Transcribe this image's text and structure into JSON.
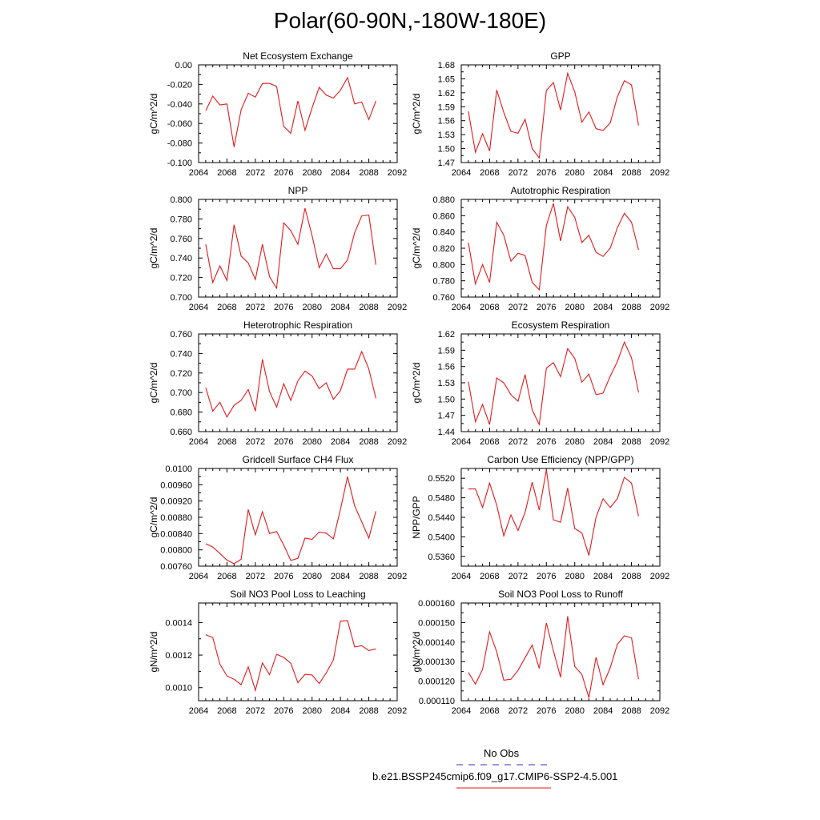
{
  "title": "Polar(60-90N,-180W-180E)",
  "legend": {
    "obs_label": "No Obs",
    "obs_color": "#3333cc",
    "model_label": "b.e21.BSSP245cmip6.f09_g17.CMIP6-SSP2-4.5.001",
    "model_color": "#e31a1c"
  },
  "chart_data": [
    {
      "type": "line",
      "title": "Net Ecosystem Exchange",
      "ylabel": "gC/m^2/d",
      "xlim": [
        2064,
        2092
      ],
      "ylim": [
        -0.1,
        0.0
      ],
      "xticks": [
        "2064",
        "2068",
        "2072",
        "2076",
        "2080",
        "2084",
        "2088",
        "2092"
      ],
      "yticks": [
        {
          "v": -0.1,
          "label": "-0.100"
        },
        {
          "v": -0.08,
          "label": "-0.080"
        },
        {
          "v": -0.06,
          "label": "-0.060"
        },
        {
          "v": -0.04,
          "label": "-0.040"
        },
        {
          "v": -0.02,
          "label": "-0.020"
        },
        {
          "v": 0.0,
          "label": "0.00"
        }
      ],
      "series": [
        {
          "color": "#e31a1c",
          "x": [
            2065,
            2066,
            2067,
            2068,
            2069,
            2070,
            2071,
            2072,
            2073,
            2074,
            2075,
            2076,
            2077,
            2078,
            2079,
            2080,
            2081,
            2082,
            2083,
            2084,
            2085,
            2086,
            2087,
            2088,
            2089
          ],
          "y": [
            -0.047,
            -0.032,
            -0.041,
            -0.04,
            -0.084,
            -0.046,
            -0.029,
            -0.033,
            -0.019,
            -0.019,
            -0.022,
            -0.063,
            -0.07,
            -0.037,
            -0.067,
            -0.044,
            -0.023,
            -0.031,
            -0.034,
            -0.026,
            -0.013,
            -0.04,
            -0.038,
            -0.056,
            -0.037
          ]
        }
      ]
    },
    {
      "type": "line",
      "title": "GPP",
      "ylabel": "gC/m^2/d",
      "xlim": [
        2064,
        2092
      ],
      "ylim": [
        1.47,
        1.68
      ],
      "xticks": [
        "2064",
        "2068",
        "2072",
        "2076",
        "2080",
        "2084",
        "2088",
        "2092"
      ],
      "yticks": [
        {
          "v": 1.47,
          "label": "1.47"
        },
        {
          "v": 1.5,
          "label": "1.50"
        },
        {
          "v": 1.53,
          "label": "1.53"
        },
        {
          "v": 1.56,
          "label": "1.56"
        },
        {
          "v": 1.59,
          "label": "1.59"
        },
        {
          "v": 1.62,
          "label": "1.62"
        },
        {
          "v": 1.65,
          "label": "1.65"
        },
        {
          "v": 1.68,
          "label": "1.68"
        }
      ],
      "series": [
        {
          "color": "#e31a1c",
          "x": [
            2065,
            2066,
            2067,
            2068,
            2069,
            2070,
            2071,
            2072,
            2073,
            2074,
            2075,
            2076,
            2077,
            2078,
            2079,
            2080,
            2081,
            2082,
            2083,
            2084,
            2085,
            2086,
            2087,
            2088,
            2089
          ],
          "y": [
            1.58,
            1.492,
            1.532,
            1.495,
            1.626,
            1.578,
            1.537,
            1.533,
            1.563,
            1.5,
            1.48,
            1.625,
            1.642,
            1.583,
            1.662,
            1.622,
            1.557,
            1.579,
            1.543,
            1.539,
            1.555,
            1.611,
            1.646,
            1.637,
            1.55
          ]
        }
      ]
    },
    {
      "type": "line",
      "title": "NPP",
      "ylabel": "gC/m^2/d",
      "xlim": [
        2064,
        2092
      ],
      "ylim": [
        0.7,
        0.8
      ],
      "xticks": [
        "2064",
        "2068",
        "2072",
        "2076",
        "2080",
        "2084",
        "2088",
        "2092"
      ],
      "yticks": [
        {
          "v": 0.7,
          "label": "0.700"
        },
        {
          "v": 0.72,
          "label": "0.720"
        },
        {
          "v": 0.74,
          "label": "0.740"
        },
        {
          "v": 0.76,
          "label": "0.760"
        },
        {
          "v": 0.78,
          "label": "0.780"
        },
        {
          "v": 0.8,
          "label": "0.800"
        }
      ],
      "series": [
        {
          "color": "#e31a1c",
          "x": [
            2065,
            2066,
            2067,
            2068,
            2069,
            2070,
            2071,
            2072,
            2073,
            2074,
            2075,
            2076,
            2077,
            2078,
            2079,
            2080,
            2081,
            2082,
            2083,
            2084,
            2085,
            2086,
            2087,
            2088,
            2089
          ],
          "y": [
            0.754,
            0.715,
            0.732,
            0.717,
            0.774,
            0.742,
            0.735,
            0.718,
            0.754,
            0.721,
            0.709,
            0.776,
            0.768,
            0.754,
            0.791,
            0.763,
            0.73,
            0.744,
            0.729,
            0.729,
            0.738,
            0.766,
            0.783,
            0.784,
            0.733
          ]
        }
      ]
    },
    {
      "type": "line",
      "title": "Autotrophic Respiration",
      "ylabel": "gC/m^2/d",
      "xlim": [
        2064,
        2092
      ],
      "ylim": [
        0.76,
        0.88
      ],
      "xticks": [
        "2064",
        "2068",
        "2072",
        "2076",
        "2080",
        "2084",
        "2088",
        "2092"
      ],
      "yticks": [
        {
          "v": 0.76,
          "label": "0.760"
        },
        {
          "v": 0.78,
          "label": "0.780"
        },
        {
          "v": 0.8,
          "label": "0.800"
        },
        {
          "v": 0.82,
          "label": "0.820"
        },
        {
          "v": 0.84,
          "label": "0.840"
        },
        {
          "v": 0.86,
          "label": "0.860"
        },
        {
          "v": 0.88,
          "label": "0.880"
        }
      ],
      "series": [
        {
          "color": "#e31a1c",
          "x": [
            2065,
            2066,
            2067,
            2068,
            2069,
            2070,
            2071,
            2072,
            2073,
            2074,
            2075,
            2076,
            2077,
            2078,
            2079,
            2080,
            2081,
            2082,
            2083,
            2084,
            2085,
            2086,
            2087,
            2088,
            2089
          ],
          "y": [
            0.827,
            0.776,
            0.8,
            0.778,
            0.852,
            0.836,
            0.804,
            0.814,
            0.811,
            0.778,
            0.769,
            0.848,
            0.875,
            0.829,
            0.871,
            0.858,
            0.827,
            0.836,
            0.815,
            0.81,
            0.82,
            0.845,
            0.863,
            0.852,
            0.818
          ]
        }
      ]
    },
    {
      "type": "line",
      "title": "Heterotrophic Respiration",
      "ylabel": "gC/m^2/d",
      "xlim": [
        2064,
        2092
      ],
      "ylim": [
        0.66,
        0.76
      ],
      "xticks": [
        "2064",
        "2068",
        "2072",
        "2076",
        "2080",
        "2084",
        "2088",
        "2092"
      ],
      "yticks": [
        {
          "v": 0.66,
          "label": "0.660"
        },
        {
          "v": 0.68,
          "label": "0.680"
        },
        {
          "v": 0.7,
          "label": "0.700"
        },
        {
          "v": 0.72,
          "label": "0.720"
        },
        {
          "v": 0.74,
          "label": "0.740"
        },
        {
          "v": 0.76,
          "label": "0.760"
        }
      ],
      "series": [
        {
          "color": "#e31a1c",
          "x": [
            2065,
            2066,
            2067,
            2068,
            2069,
            2070,
            2071,
            2072,
            2073,
            2074,
            2075,
            2076,
            2077,
            2078,
            2079,
            2080,
            2081,
            2082,
            2083,
            2084,
            2085,
            2086,
            2087,
            2088,
            2089
          ],
          "y": [
            0.705,
            0.681,
            0.69,
            0.675,
            0.687,
            0.692,
            0.703,
            0.681,
            0.734,
            0.701,
            0.685,
            0.709,
            0.692,
            0.712,
            0.722,
            0.717,
            0.704,
            0.71,
            0.693,
            0.702,
            0.724,
            0.724,
            0.742,
            0.724,
            0.694
          ]
        }
      ]
    },
    {
      "type": "line",
      "title": "Ecosystem Respiration",
      "ylabel": "gC/m^2/d",
      "xlim": [
        2064,
        2092
      ],
      "ylim": [
        1.44,
        1.62
      ],
      "xticks": [
        "2064",
        "2068",
        "2072",
        "2076",
        "2080",
        "2084",
        "2088",
        "2092"
      ],
      "yticks": [
        {
          "v": 1.44,
          "label": "1.44"
        },
        {
          "v": 1.47,
          "label": "1.47"
        },
        {
          "v": 1.5,
          "label": "1.50"
        },
        {
          "v": 1.53,
          "label": "1.53"
        },
        {
          "v": 1.56,
          "label": "1.56"
        },
        {
          "v": 1.59,
          "label": "1.59"
        },
        {
          "v": 1.62,
          "label": "1.62"
        }
      ],
      "series": [
        {
          "color": "#e31a1c",
          "x": [
            2065,
            2066,
            2067,
            2068,
            2069,
            2070,
            2071,
            2072,
            2073,
            2074,
            2075,
            2076,
            2077,
            2078,
            2079,
            2080,
            2081,
            2082,
            2083,
            2084,
            2085,
            2086,
            2087,
            2088,
            2089
          ],
          "y": [
            1.532,
            1.458,
            1.49,
            1.453,
            1.539,
            1.53,
            1.508,
            1.496,
            1.545,
            1.48,
            1.453,
            1.557,
            1.567,
            1.541,
            1.593,
            1.575,
            1.531,
            1.546,
            1.508,
            1.511,
            1.542,
            1.569,
            1.605,
            1.576,
            1.512
          ]
        }
      ]
    },
    {
      "type": "line",
      "title": "Gridcell Surface CH4 Flux",
      "ylabel": "gC/m^2/d",
      "xlim": [
        2064,
        2092
      ],
      "ylim": [
        0.0076,
        0.01
      ],
      "xticks": [
        "2064",
        "2068",
        "2072",
        "2076",
        "2080",
        "2084",
        "2088",
        "2092"
      ],
      "yticks": [
        {
          "v": 0.0076,
          "label": "0.00760"
        },
        {
          "v": 0.008,
          "label": "0.00800"
        },
        {
          "v": 0.0084,
          "label": "0.00840"
        },
        {
          "v": 0.0088,
          "label": "0.00880"
        },
        {
          "v": 0.0092,
          "label": "0.00920"
        },
        {
          "v": 0.0096,
          "label": "0.00960"
        },
        {
          "v": 0.01,
          "label": "0.0100"
        }
      ],
      "series": [
        {
          "color": "#e31a1c",
          "x": [
            2065,
            2066,
            2067,
            2068,
            2069,
            2070,
            2071,
            2072,
            2073,
            2074,
            2075,
            2076,
            2077,
            2078,
            2079,
            2080,
            2081,
            2082,
            2083,
            2084,
            2085,
            2086,
            2087,
            2088,
            2089
          ],
          "y": [
            0.00815,
            0.00807,
            0.00791,
            0.00775,
            0.00766,
            0.00777,
            0.00899,
            0.00837,
            0.00894,
            0.0084,
            0.00845,
            0.00812,
            0.00774,
            0.00779,
            0.00829,
            0.00826,
            0.00844,
            0.00841,
            0.00827,
            0.00899,
            0.0098,
            0.00908,
            0.00869,
            0.00829,
            0.00895
          ]
        }
      ]
    },
    {
      "type": "line",
      "title": "Carbon Use Efficiency (NPP/GPP)",
      "ylabel": "NPP/GPP",
      "xlim": [
        2064,
        2092
      ],
      "ylim": [
        0.534,
        0.554
      ],
      "xticks": [
        "2064",
        "2068",
        "2072",
        "2076",
        "2080",
        "2084",
        "2088",
        "2092"
      ],
      "yticks": [
        {
          "v": 0.536,
          "label": "0.5360"
        },
        {
          "v": 0.54,
          "label": "0.5400"
        },
        {
          "v": 0.544,
          "label": "0.5440"
        },
        {
          "v": 0.548,
          "label": "0.5480"
        },
        {
          "v": 0.552,
          "label": "0.5520"
        }
      ],
      "series": [
        {
          "color": "#e31a1c",
          "x": [
            2065,
            2066,
            2067,
            2068,
            2069,
            2070,
            2071,
            2072,
            2073,
            2074,
            2075,
            2076,
            2077,
            2078,
            2079,
            2080,
            2081,
            2082,
            2083,
            2084,
            2085,
            2086,
            2087,
            2088,
            2089
          ],
          "y": [
            0.5498,
            0.5498,
            0.546,
            0.551,
            0.5465,
            0.5402,
            0.5445,
            0.5413,
            0.545,
            0.5512,
            0.5455,
            0.5537,
            0.5435,
            0.543,
            0.55,
            0.5417,
            0.5408,
            0.5362,
            0.544,
            0.5478,
            0.546,
            0.5478,
            0.5522,
            0.551,
            0.5442
          ]
        }
      ]
    },
    {
      "type": "line",
      "title": "Soil NO3 Pool Loss to Leaching",
      "ylabel": "gN/m^2/d",
      "xlim": [
        2064,
        2092
      ],
      "ylim": [
        0.00092,
        0.00152
      ],
      "xticks": [
        "2064",
        "2068",
        "2072",
        "2076",
        "2080",
        "2084",
        "2088",
        "2092"
      ],
      "yticks": [
        {
          "v": 0.001,
          "label": "0.0010"
        },
        {
          "v": 0.0012,
          "label": "0.0012"
        },
        {
          "v": 0.0014,
          "label": "0.0014"
        }
      ],
      "series": [
        {
          "color": "#e31a1c",
          "x": [
            2065,
            2066,
            2067,
            2068,
            2069,
            2070,
            2071,
            2072,
            2073,
            2074,
            2075,
            2076,
            2077,
            2078,
            2079,
            2080,
            2081,
            2082,
            2083,
            2084,
            2085,
            2086,
            2087,
            2088,
            2089
          ],
          "y": [
            0.001325,
            0.001308,
            0.001145,
            0.001072,
            0.001052,
            0.001018,
            0.001128,
            0.000983,
            0.001152,
            0.00108,
            0.001205,
            0.001186,
            0.00115,
            0.00103,
            0.001082,
            0.001078,
            0.001025,
            0.00109,
            0.00117,
            0.001408,
            0.001412,
            0.00125,
            0.001258,
            0.001228,
            0.001238
          ]
        }
      ]
    },
    {
      "type": "line",
      "title": "Soil NO3 Pool Loss to Runoff",
      "ylabel": "gN/m^2/d",
      "xlim": [
        2064,
        2092
      ],
      "ylim": [
        0.00011,
        0.00016
      ],
      "xticks": [
        "2064",
        "2068",
        "2072",
        "2076",
        "2080",
        "2084",
        "2088",
        "2092"
      ],
      "yticks": [
        {
          "v": 0.00011,
          "label": "0.000110"
        },
        {
          "v": 0.00012,
          "label": "0.000120"
        },
        {
          "v": 0.00013,
          "label": "0.000130"
        },
        {
          "v": 0.00014,
          "label": "0.000140"
        },
        {
          "v": 0.00015,
          "label": "0.000150"
        },
        {
          "v": 0.00016,
          "label": "0.000160"
        }
      ],
      "series": [
        {
          "color": "#e31a1c",
          "x": [
            2065,
            2066,
            2067,
            2068,
            2069,
            2070,
            2071,
            2072,
            2073,
            2074,
            2075,
            2076,
            2077,
            2078,
            2079,
            2080,
            2081,
            2082,
            2083,
            2084,
            2085,
            2086,
            2087,
            2088,
            2089
          ],
          "y": [
            0.0001245,
            0.0001185,
            0.000126,
            0.0001452,
            0.000135,
            0.0001205,
            0.000121,
            0.0001255,
            0.000132,
            0.0001385,
            0.0001265,
            0.0001498,
            0.0001355,
            0.000122,
            0.0001532,
            0.0001275,
            0.0001235,
            0.0001115,
            0.0001322,
            0.0001182,
            0.0001268,
            0.0001388,
            0.0001432,
            0.0001422,
            0.000121
          ]
        }
      ]
    }
  ]
}
